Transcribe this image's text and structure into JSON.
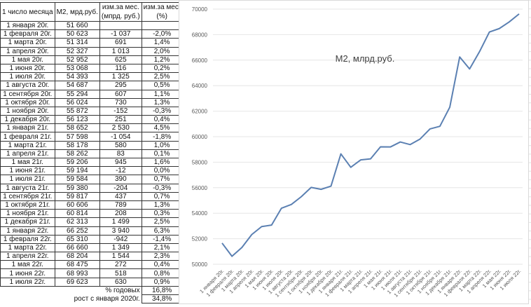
{
  "table": {
    "headers": [
      "1 число месяца",
      "М2, мрд.руб.",
      "изм.за мес.",
      "(мпрд. руб.)",
      "изм.за мес.",
      "(%)"
    ],
    "rows": [
      [
        "1 января 20г.",
        "51 660",
        "",
        ""
      ],
      [
        "1 февраля 20г.",
        "50 623",
        "-1 037",
        "-2,0%"
      ],
      [
        "1 марта 20г.",
        "51 314",
        "691",
        "1,4%"
      ],
      [
        "1 апреля 20г.",
        "52 327",
        "1 013",
        "2,0%"
      ],
      [
        "1 мая 20г.",
        "52 952",
        "625",
        "1,2%"
      ],
      [
        "1 июня 20г.",
        "53 068",
        "116",
        "0,2%"
      ],
      [
        "1 июля 20г.",
        "54 393",
        "1 325",
        "2,5%"
      ],
      [
        "1 августа 20г.",
        "54 687",
        "295",
        "0,5%"
      ],
      [
        "1 сентября 20г.",
        "55 294",
        "607",
        "1,1%"
      ],
      [
        "1 октября 20г.",
        "56 024",
        "730",
        "1,3%"
      ],
      [
        "1 ноября 20г.",
        "55 872",
        "-152",
        "-0,3%"
      ],
      [
        "1 декабря 20г.",
        "56 123",
        "251",
        "0,4%"
      ],
      [
        "1 января 21г.",
        "58 652",
        "2 530",
        "4,5%"
      ],
      [
        "1 февраля 21г.",
        "57 598",
        "-1 054",
        "-1,8%"
      ],
      [
        "1 марта 21г.",
        "58 178",
        "580",
        "1,0%"
      ],
      [
        "1 апреля 21г.",
        "58 262",
        "83",
        "0,1%"
      ],
      [
        "1 мая 21г.",
        "59 206",
        "945",
        "1,6%"
      ],
      [
        "1 июня 21г.",
        "59 194",
        "-12",
        "0,0%"
      ],
      [
        "1 июля 21г.",
        "59 584",
        "390",
        "0,7%"
      ],
      [
        "1 августа 21г.",
        "59 380",
        "-204",
        "-0,3%"
      ],
      [
        "1 сентября 21г.",
        "59 817",
        "437",
        "0,7%"
      ],
      [
        "1 октября 21г.",
        "60 606",
        "789",
        "1,3%"
      ],
      [
        "1 ноября 21г.",
        "60 814",
        "208",
        "0,3%"
      ],
      [
        "1 декабря 21г.",
        "62 313",
        "1 499",
        "2,5%"
      ],
      [
        "1 января 22г.",
        "66 252",
        "3 940",
        "6,3%"
      ],
      [
        "1 февраля 22г.",
        "65 310",
        "-942",
        "-1,4%"
      ],
      [
        "1 марта 22г.",
        "66 660",
        "1 349",
        "2,1%"
      ],
      [
        "1 апреля 22г.",
        "68 204",
        "1 544",
        "2,3%"
      ],
      [
        "1 мая 22г.",
        "68 475",
        "272",
        "0,4%"
      ],
      [
        "1 июня 22г.",
        "68 993",
        "518",
        "0,8%"
      ],
      [
        "1 июля 22г.",
        "69 623",
        "630",
        "0,9%"
      ]
    ],
    "summary": [
      {
        "label": "% годовых",
        "value": "16,8%"
      },
      {
        "label": "рост с января 2020г.",
        "value": "34,8%"
      }
    ]
  },
  "chart_data": {
    "type": "line",
    "title": "М2, млрд.руб.",
    "categories": [
      "1 января 20г.",
      "1 февраля 20г.",
      "1 марта 20г.",
      "1 апреля 20г.",
      "1 мая 20г.",
      "1 июня 20г.",
      "1 июля 20г.",
      "1 августа 20г.",
      "1 сентября 20г.",
      "1 октября 20г.",
      "1 ноября 20г.",
      "1 декабря 20г.",
      "1 января 21г.",
      "1 февраля 21г.",
      "1 марта 21г.",
      "1 апреля 21г.",
      "1 мая 21г.",
      "1 июня 21г.",
      "1 июля 21г.",
      "1 августа 21г.",
      "1 сентября 21г.",
      "1 октября 21г.",
      "1 ноября 21г.",
      "1 декабря 21г.",
      "1 января 22г.",
      "1 февраля 22г.",
      "1 марта 22г.",
      "1 апреля 22г.",
      "1 мая 22г.",
      "1 июня 22г.",
      "1 июля 22г."
    ],
    "values": [
      51660,
      50623,
      51314,
      52327,
      52952,
      53068,
      54393,
      54687,
      55294,
      56024,
      55872,
      56123,
      58652,
      57598,
      58178,
      58262,
      59206,
      59194,
      59584,
      59380,
      59817,
      60606,
      60814,
      62313,
      66252,
      65310,
      66660,
      68204,
      68475,
      68993,
      69623
    ],
    "ylim": [
      50000,
      70000
    ],
    "yticks": [
      50000,
      52000,
      54000,
      56000,
      58000,
      60000,
      62000,
      64000,
      66000,
      68000,
      70000
    ],
    "grid": true,
    "color": "#5b80b2",
    "legend": "none"
  }
}
